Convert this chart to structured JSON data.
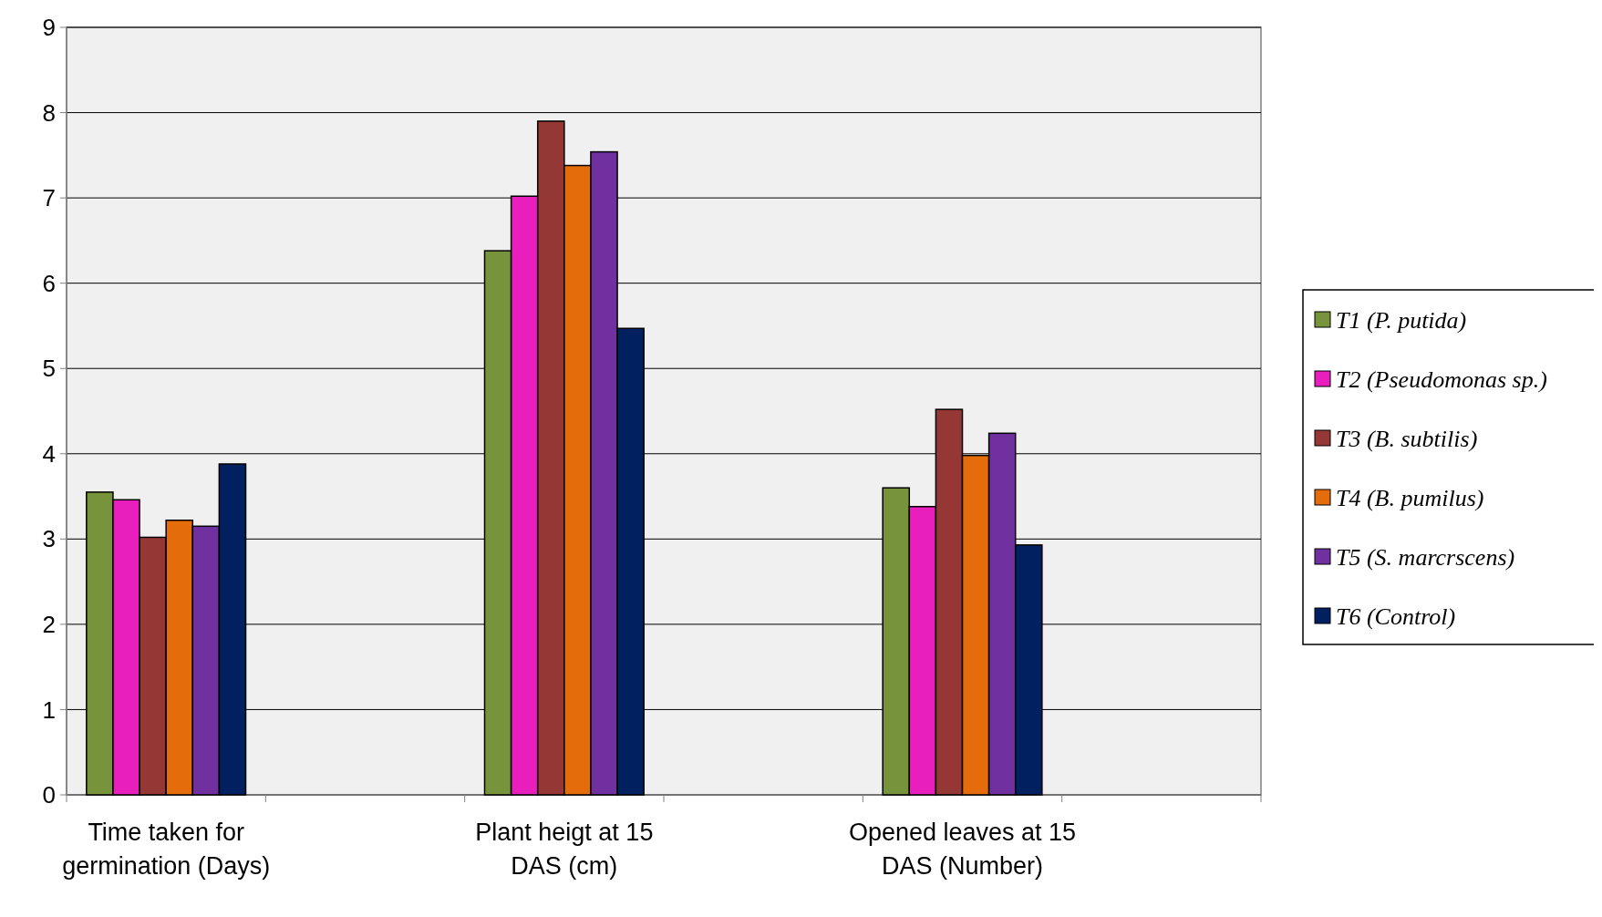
{
  "chart_data": {
    "type": "bar",
    "categories": [
      "Time taken for germination (Days)",
      null,
      "Plant heigt at 15 DAS (cm)",
      null,
      "Opened leaves at 15 DAS (Number)",
      null
    ],
    "series": [
      {
        "name": "T1 (P. putida)",
        "color": "#77933c",
        "values": [
          3.55,
          null,
          6.38,
          null,
          3.6,
          null
        ]
      },
      {
        "name": "T2 (Pseudomonas sp.)",
        "color": "#e91fbd",
        "values": [
          3.46,
          null,
          7.02,
          null,
          3.38,
          null
        ]
      },
      {
        "name": "T3 (B. subtilis)",
        "color": "#953735",
        "values": [
          3.02,
          null,
          7.9,
          null,
          4.52,
          null
        ]
      },
      {
        "name": "T4 (B. pumilus)",
        "color": "#e46c0a",
        "values": [
          3.22,
          null,
          7.38,
          null,
          3.98,
          null
        ]
      },
      {
        "name": "T5 (S. marcrscens)",
        "color": "#7030a0",
        "values": [
          3.15,
          null,
          7.54,
          null,
          4.24,
          null
        ]
      },
      {
        "name": "T6 (Control)",
        "color": "#002060",
        "values": [
          3.88,
          null,
          5.47,
          null,
          2.93,
          null
        ]
      }
    ],
    "ylim": [
      0,
      9
    ],
    "yticks": [
      0,
      1,
      2,
      3,
      4,
      5,
      6,
      7,
      8,
      9
    ],
    "grid": "y",
    "legend": "right"
  }
}
